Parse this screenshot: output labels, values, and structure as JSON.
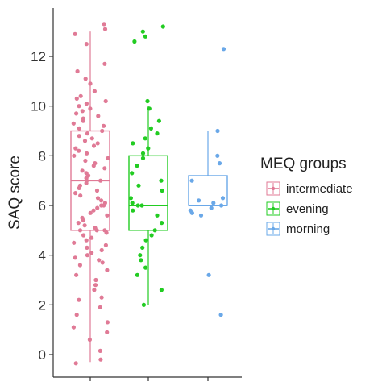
{
  "chart_data": {
    "type": "boxplot-jitter",
    "title": "",
    "xlabel": "",
    "ylabel": "SAQ score",
    "ylim": [
      -0.8,
      14
    ],
    "yticks": [
      0,
      2,
      4,
      6,
      8,
      10,
      12
    ],
    "grid": false,
    "legend": {
      "title": "MEQ groups",
      "position": "right",
      "entries": [
        "intermediate",
        "evening",
        "morning"
      ]
    },
    "series": [
      {
        "name": "intermediate",
        "color": "#e07a96",
        "box": {
          "min": -0.3,
          "q1": 5,
          "median": 7,
          "q3": 9,
          "max": 13
        },
        "points": [
          13.3,
          13.1,
          12.9,
          12.5,
          11.7,
          11.4,
          11.1,
          10.9,
          10.6,
          10.4,
          10.3,
          10.2,
          10.1,
          10.0,
          9.9,
          9.8,
          9.7,
          9.6,
          9.5,
          9.4,
          9.3,
          9.2,
          9.1,
          9.0,
          8.9,
          8.8,
          8.7,
          8.6,
          8.5,
          8.4,
          8.3,
          8.2,
          8.1,
          8.0,
          7.9,
          7.8,
          7.7,
          7.6,
          7.5,
          7.4,
          7.3,
          7.2,
          7.1,
          7.0,
          7.0,
          6.9,
          6.8,
          6.7,
          6.6,
          6.5,
          6.4,
          6.3,
          6.2,
          6.1,
          6.0,
          6.0,
          5.9,
          5.8,
          5.7,
          5.6,
          5.5,
          5.4,
          5.3,
          5.2,
          5.1,
          5.0,
          5.0,
          5.0,
          4.9,
          4.8,
          4.7,
          4.6,
          4.5,
          4.4,
          4.3,
          4.2,
          4.1,
          4.0,
          3.9,
          3.8,
          3.7,
          3.6,
          3.4,
          3.2,
          3.0,
          2.8,
          2.6,
          2.3,
          2.2,
          1.9,
          1.6,
          1.3,
          1.1,
          0.9,
          0.6,
          0.15,
          -0.2,
          -0.35
        ]
      },
      {
        "name": "evening",
        "color": "#22cc22",
        "box": {
          "min": 2,
          "q1": 5,
          "median": 6,
          "q3": 8,
          "max": 10
        },
        "points": [
          13.2,
          13.0,
          12.8,
          12.6,
          10.2,
          9.9,
          9.4,
          9.1,
          8.9,
          8.7,
          8.5,
          8.3,
          8.1,
          7.9,
          7.6,
          7.3,
          7.0,
          6.8,
          6.6,
          6.3,
          6.1,
          6.0,
          6.0,
          5.8,
          5.6,
          5.3,
          5.0,
          4.8,
          4.6,
          4.3,
          4.0,
          3.8,
          3.5,
          3.2,
          2.6,
          2.0
        ]
      },
      {
        "name": "morning",
        "color": "#6aa8e8",
        "box": {
          "min": 6,
          "q1": 6,
          "median": 6,
          "q3": 7.2,
          "max": 9
        },
        "points": [
          12.3,
          9.0,
          8.0,
          7.7,
          7.0,
          6.3,
          6.2,
          6.1,
          6.0,
          5.9,
          5.8,
          5.7,
          5.6,
          3.2,
          1.6
        ]
      }
    ]
  }
}
